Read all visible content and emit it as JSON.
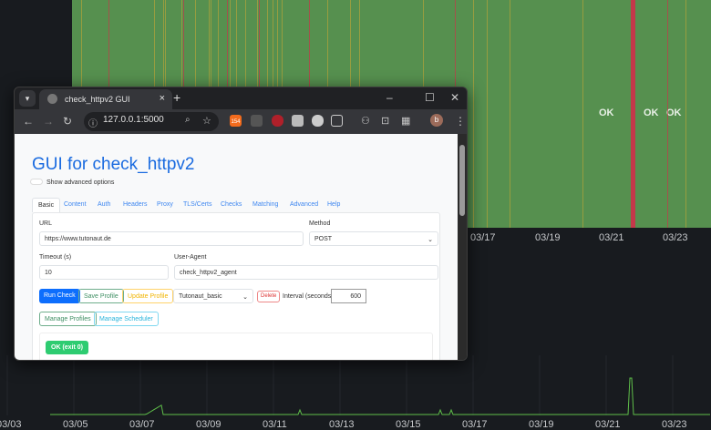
{
  "dashboard": {
    "timeline_labels": [
      "OK",
      "OK",
      "OK",
      "OK"
    ],
    "top_axis_ticks": [
      "03/17",
      "03/19",
      "03/21",
      "03/23"
    ],
    "bottom_axis_ticks": [
      "03/03",
      "03/05",
      "03/07",
      "03/09",
      "03/11",
      "03/13",
      "03/15",
      "03/17",
      "03/19",
      "03/21",
      "03/23"
    ],
    "colors": {
      "ok": "#56904f",
      "warning": "#b3a33a",
      "critical": "#c4384a",
      "series": "#5fbf4a",
      "background": "#181b1f"
    }
  },
  "browser": {
    "tab_title": "check_httpv2 GUI",
    "url": "127.0.0.1:5000",
    "extension_badge": "154",
    "profile_initial": "b"
  },
  "page": {
    "title": "GUI for check_httpv2",
    "advanced_toggle_label": "Show advanced options",
    "tabs": [
      "Basic",
      "Content",
      "Auth",
      "Headers",
      "Proxy",
      "TLS/Certs",
      "Checks",
      "Matching",
      "Advanced",
      "Help"
    ],
    "url_label": "URL",
    "url_value": "https://www.tutonaut.de",
    "method_label": "Method",
    "method_value": "POST",
    "timeout_label": "Timeout (s)",
    "timeout_value": "10",
    "useragent_label": "User-Agent",
    "useragent_value": "check_httpv2_agent",
    "run_check": "Run Check",
    "save_profile": "Save Profile",
    "update_profile": "Update Profile",
    "profile_select": "Tutonaut_basic",
    "delete": "Delete",
    "interval_label": "Interval (seconds):",
    "interval_value": "600",
    "manage_profiles": "Manage Profiles",
    "manage_scheduler": "Manage Scheduler",
    "result_badge": "OK (exit 0)"
  }
}
